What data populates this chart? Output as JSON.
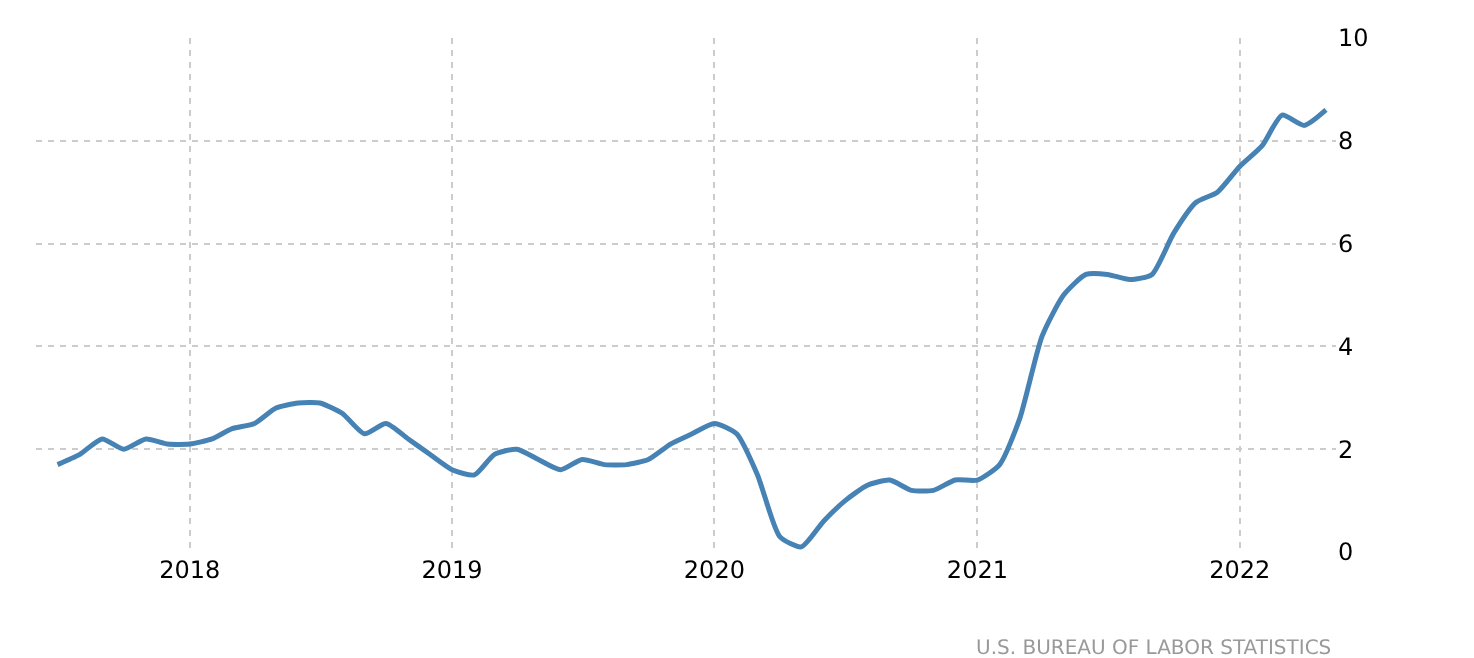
{
  "chart_data": {
    "type": "line",
    "x": [
      "2017-07",
      "2017-08",
      "2017-09",
      "2017-10",
      "2017-11",
      "2017-12",
      "2018-01",
      "2018-02",
      "2018-03",
      "2018-04",
      "2018-05",
      "2018-06",
      "2018-07",
      "2018-08",
      "2018-09",
      "2018-10",
      "2018-11",
      "2018-12",
      "2019-01",
      "2019-02",
      "2019-03",
      "2019-04",
      "2019-05",
      "2019-06",
      "2019-07",
      "2019-08",
      "2019-09",
      "2019-10",
      "2019-11",
      "2019-12",
      "2020-01",
      "2020-02",
      "2020-03",
      "2020-04",
      "2020-05",
      "2020-06",
      "2020-07",
      "2020-08",
      "2020-09",
      "2020-10",
      "2020-11",
      "2020-12",
      "2021-01",
      "2021-02",
      "2021-03",
      "2021-04",
      "2021-05",
      "2021-06",
      "2021-07",
      "2021-08",
      "2021-09",
      "2021-10",
      "2021-11",
      "2021-12",
      "2022-01",
      "2022-02",
      "2022-03",
      "2022-04",
      "2022-05"
    ],
    "series": [
      {
        "color": "#4682b4",
        "values": [
          1.7,
          1.9,
          2.2,
          2.0,
          2.2,
          2.1,
          2.1,
          2.2,
          2.4,
          2.5,
          2.8,
          2.9,
          2.9,
          2.7,
          2.3,
          2.5,
          2.2,
          1.9,
          1.6,
          1.5,
          1.9,
          2.0,
          1.8,
          1.6,
          1.8,
          1.7,
          1.7,
          1.8,
          2.1,
          2.3,
          2.5,
          2.3,
          1.5,
          0.3,
          0.1,
          0.6,
          1.0,
          1.3,
          1.4,
          1.2,
          1.2,
          1.4,
          1.4,
          1.7,
          2.6,
          4.2,
          5.0,
          5.4,
          5.4,
          5.3,
          5.4,
          6.2,
          6.8,
          7.0,
          7.5,
          7.9,
          8.5,
          8.3,
          8.6
        ]
      }
    ],
    "xlim": [
      "2017-06",
      "2022-05-15"
    ],
    "xticks": [
      {
        "value": "2018",
        "label": "2018"
      },
      {
        "value": "2019",
        "label": "2019"
      },
      {
        "value": "2020",
        "label": "2020"
      },
      {
        "value": "2021",
        "label": "2021"
      },
      {
        "value": "2022",
        "label": "2022"
      }
    ],
    "ylim": [
      0,
      10
    ],
    "yticks": [
      0,
      2,
      4,
      6,
      8,
      10
    ],
    "grid": true,
    "marker": "none",
    "line_style": "solid",
    "annotations": [
      "U.S. BUREAU OF LABOR STATISTICS"
    ]
  }
}
